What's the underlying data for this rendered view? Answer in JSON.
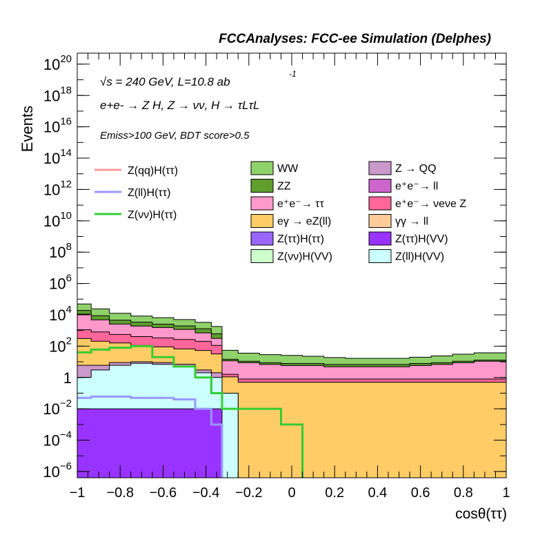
{
  "chart_data": {
    "type": "area",
    "title": "FCCAnalyses: FCC-ee Simulation (Delphes)",
    "xlabel": "cosθ(ττ)",
    "ylabel": "Events",
    "xlim": [
      -1,
      1
    ],
    "ylog": true,
    "ylim_exponent": [
      -6.4,
      20.7
    ],
    "x_ticks": [
      -1,
      -0.8,
      -0.6,
      -0.4,
      -0.2,
      0,
      0.2,
      0.4,
      0.6,
      0.8,
      1
    ],
    "x_tick_labels": [
      "−1",
      "−0.8",
      "−0.6",
      "−0.4",
      "−0.2",
      "0",
      "0.2",
      "0.4",
      "0.6",
      "0.8",
      "1"
    ],
    "y_tick_exponents": [
      20,
      18,
      16,
      14,
      12,
      10,
      8,
      6,
      4,
      2,
      0,
      -2,
      -4,
      -6
    ],
    "annotations": [
      "√s = 240 GeV, L=10.8 ab",
      "-1",
      "e+e- → Z H, Z → νν, H → τLτL",
      "Emiss>100 GeV, BDT score>0.5"
    ],
    "stack_legend": [
      {
        "name": "WW",
        "color": "#8fd16a"
      },
      {
        "name": "Z → QQ",
        "color": "#cc99cc"
      },
      {
        "name": "ZZ",
        "color": "#5f9e2f"
      },
      {
        "name": "e⁺e⁻→ ll",
        "color": "#cc66cc"
      },
      {
        "name": "e⁺e⁻→ ττ",
        "color": "#ff99cc"
      },
      {
        "name": "e⁺e⁻→ νeνe Z",
        "color": "#ff6699"
      },
      {
        "name": "eγ → eZ(ll)",
        "color": "#ffcc66"
      },
      {
        "name": "γγ → ll",
        "color": "#ffcc99"
      },
      {
        "name": "Z(ττ)H(ττ)",
        "color": "#9966ff"
      },
      {
        "name": "Z(ττ)H(VV)",
        "color": "#9933ff"
      },
      {
        "name": "Z(νν)H(VV)",
        "color": "#ccffcc"
      },
      {
        "name": "Z(ll)H(VV)",
        "color": "#ccffff"
      }
    ],
    "line_legend": [
      {
        "name": "Z(qq)H(ττ)",
        "color": "#ff9999"
      },
      {
        "name": "Z(ll)H(ττ)",
        "color": "#9999ff"
      },
      {
        "name": "Z(νν)H(ττ)",
        "color": "#33cc33"
      }
    ],
    "x": [
      -0.97,
      -0.9,
      -0.8,
      -0.7,
      -0.6,
      -0.5,
      -0.4,
      -0.35,
      -0.3,
      -0.2,
      -0.1,
      0.0,
      0.1,
      0.2,
      0.3,
      0.4,
      0.5,
      0.6,
      0.7,
      0.8,
      0.9,
      0.97
    ],
    "series": [
      {
        "name": "WW",
        "values": [
          30000,
          15000,
          8000,
          5000,
          4000,
          3000,
          2000,
          1200,
          40,
          25,
          20,
          18,
          15,
          12,
          10,
          10,
          10,
          12,
          15,
          20,
          25,
          25
        ]
      },
      {
        "name": "ZZ",
        "values": [
          8000,
          4000,
          2000,
          1500,
          1000,
          800,
          600,
          300,
          3,
          2,
          2,
          2,
          2,
          2,
          2,
          2,
          2,
          2,
          2,
          2,
          2,
          2
        ]
      },
      {
        "name": "e⁺e⁻→ ττ",
        "values": [
          10000,
          4000,
          2000,
          1500,
          1200,
          900,
          500,
          200,
          10,
          8,
          6,
          5,
          5,
          4,
          4,
          4,
          4,
          5,
          6,
          8,
          10,
          10
        ]
      },
      {
        "name": "e⁺e⁻→ νeνe Z",
        "values": [
          800,
          600,
          400,
          300,
          250,
          200,
          150,
          80,
          0.5,
          0.3,
          0.3,
          0.3,
          0.3,
          0.3,
          0.3,
          0.3,
          0.3,
          0.3,
          0.3,
          0.3,
          0.3,
          0.3
        ]
      },
      {
        "name": "eγ → eZ(ll)",
        "values": [
          300,
          200,
          150,
          100,
          80,
          60,
          50,
          30,
          1,
          0.5,
          0.5,
          0.5,
          0.5,
          0.5,
          0.5,
          0.5,
          0.5,
          0.5,
          0.5,
          0.5,
          0.5,
          0.5
        ]
      },
      {
        "name": "Z → QQ",
        "values": [
          5,
          3,
          3,
          2,
          2,
          2,
          1,
          1,
          0,
          0,
          0,
          0,
          0,
          0,
          0,
          0,
          0,
          0,
          0,
          0,
          0,
          0
        ]
      },
      {
        "name": "Z(ll)H(VV)",
        "values": [
          1,
          3,
          6,
          8,
          7,
          5,
          2,
          1,
          0.1,
          0,
          0,
          0,
          0,
          0,
          0,
          0,
          0,
          0,
          0,
          0,
          0,
          0
        ]
      },
      {
        "name": "Z(ττ)H(VV)",
        "values": [
          0.01,
          0.01,
          0.01,
          0.01,
          0.01,
          0.01,
          0.01,
          0.01,
          0,
          0,
          0,
          0,
          0,
          0,
          0,
          0,
          0,
          0,
          0,
          0,
          0,
          0
        ]
      }
    ],
    "lines": [
      {
        "name": "Z(νν)H(ττ)",
        "values": [
          40,
          60,
          80,
          100,
          20,
          5,
          1,
          0.1,
          0.01,
          0.01,
          0.01,
          0.001,
          0,
          0,
          0,
          0,
          0,
          0,
          0,
          0,
          0,
          0
        ]
      },
      {
        "name": "Z(ll)H(ττ)",
        "values": [
          0.05,
          0.06,
          0.06,
          0.05,
          0.05,
          0.04,
          0.01,
          0.001,
          0,
          0,
          0,
          0,
          0,
          0,
          0,
          0,
          0,
          0,
          0,
          0,
          0,
          0
        ]
      }
    ]
  }
}
